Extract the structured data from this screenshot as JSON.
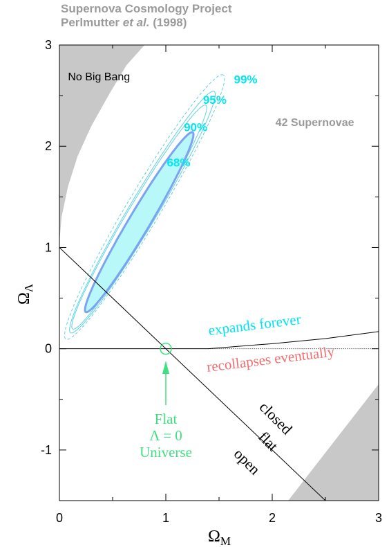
{
  "header": {
    "line1": "Supernova Cosmology Project",
    "line2_author": "Perlmutter",
    "line2_etal": "et al.",
    "line2_year": "(1998)"
  },
  "chart_data": {
    "type": "contour",
    "xlabel": "Ω",
    "xlabel_sub": "M",
    "ylabel": "Ω",
    "ylabel_sub": "Λ",
    "xlim": [
      0,
      3
    ],
    "ylim": [
      -1.5,
      3
    ],
    "x_ticks": [
      "0",
      "1",
      "2",
      "3"
    ],
    "y_ticks": [
      "-1",
      "0",
      "1",
      "2",
      "3"
    ],
    "x_tick_values": [
      0,
      1,
      2,
      3
    ],
    "y_tick_values": [
      -1,
      0,
      1,
      2,
      3
    ],
    "confidence_regions": [
      {
        "label": "68%",
        "center": [
          0.75,
          1.25
        ],
        "semi_axes": [
          1.02,
          0.1
        ],
        "angle_deg": 60.5,
        "fill": "#b8f8f8",
        "stroke": "#7aa4f0",
        "style": "thick"
      },
      {
        "label": "90%",
        "center": [
          0.75,
          1.3
        ],
        "semi_axes": [
          1.27,
          0.12
        ],
        "angle_deg": 60.5,
        "fill": "none",
        "stroke": "#5fd2e4",
        "style": "thin"
      },
      {
        "label": "95%",
        "center": [
          0.78,
          1.35
        ],
        "semi_axes": [
          1.37,
          0.135
        ],
        "angle_deg": 60.5,
        "fill": "none",
        "stroke": "#5fd2e4",
        "style": "thin"
      },
      {
        "label": "99%",
        "center": [
          0.8,
          1.4
        ],
        "semi_axes": [
          1.5,
          0.16
        ],
        "angle_deg": 60.5,
        "fill": "none",
        "stroke": "#5fd2e4",
        "style": "dashed"
      }
    ],
    "contour_labels": [
      {
        "text": "68%",
        "x": 1.12,
        "y": 1.8
      },
      {
        "text": "90%",
        "x": 1.28,
        "y": 2.15
      },
      {
        "text": "95%",
        "x": 1.46,
        "y": 2.42
      },
      {
        "text": "99%",
        "x": 1.75,
        "y": 2.62
      }
    ],
    "regions": [
      {
        "label": "No Big Bang",
        "x": 0.08,
        "y": 2.65
      },
      {
        "label": "42 Supernovae",
        "x": 2.4,
        "y": 2.2
      }
    ],
    "boundaries": {
      "flat_line": [
        [
          0,
          1
        ],
        [
          3,
          -2
        ]
      ],
      "expansion_line": [
        [
          0,
          0
        ],
        [
          1.4,
          0
        ],
        [
          2,
          0.05
        ],
        [
          2.5,
          0.1
        ],
        [
          3,
          0.17
        ]
      ],
      "recollapse_dotted_start": 1.4
    },
    "annotations": [
      {
        "text": "expands forever",
        "x": 1.84,
        "y": 0.19,
        "angle": -7,
        "color": "#00e6ee"
      },
      {
        "text": "recollapses eventually",
        "x": 1.99,
        "y": -0.15,
        "angle": -7,
        "color": "#ee7070"
      },
      {
        "text": "closed",
        "x": 2.0,
        "y": -0.72,
        "angle": 45,
        "color": "#000000"
      },
      {
        "text": "flat",
        "x": 1.93,
        "y": -0.95,
        "angle": 45,
        "color": "#000000"
      },
      {
        "text": "open",
        "x": 1.73,
        "y": -1.15,
        "angle": 45,
        "color": "#000000"
      }
    ],
    "marker": {
      "x": 1,
      "y": 0,
      "color": "#40e080"
    },
    "flat_universe_label": [
      "Flat",
      "Λ = 0",
      "Universe"
    ],
    "colors": {
      "fill_68": "#b8f8f8",
      "contour": "#5fd2e4",
      "contour_68": "#7aa4f0",
      "gray_region": "#c8c8c8",
      "cyan_text": "#00e6ee",
      "pink_text": "#ee7070",
      "green": "#40e080",
      "header_gray": "#9a9a9a"
    }
  }
}
